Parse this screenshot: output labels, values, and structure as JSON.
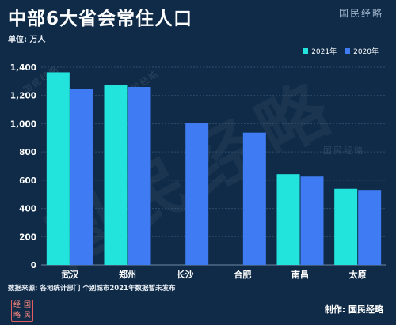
{
  "header": {
    "title": "中部6大省会常住人口",
    "unit": "单位: 万人",
    "brand": "国民经略"
  },
  "legend": [
    {
      "name": "2021年",
      "color": "#22e4dc"
    },
    {
      "name": "2020年",
      "color": "#3f7bf2"
    }
  ],
  "chart_data": {
    "type": "bar",
    "categories": [
      "武汉",
      "郑州",
      "长沙",
      "合肥",
      "南昌",
      "太原"
    ],
    "series": [
      {
        "name": "2021年",
        "color": "#22e4dc",
        "values": [
          1364,
          1274,
          null,
          null,
          643,
          539
        ]
      },
      {
        "name": "2020年",
        "color": "#3f7bf2",
        "values": [
          1245,
          1260,
          1005,
          937,
          626,
          531
        ]
      }
    ],
    "ylim": [
      0,
      1400
    ],
    "yticks": [
      "0",
      "200",
      "400",
      "600",
      "800",
      "1,000",
      "1,200",
      "1,400"
    ],
    "grid": true,
    "legend_position": "top-right"
  },
  "footer": {
    "source": "数据来源: 各地统计部门  个别城市2021年数据暂未发布",
    "credit": "制作: 国民经略",
    "seal_chars": [
      "经",
      "国",
      "略",
      "民"
    ]
  }
}
